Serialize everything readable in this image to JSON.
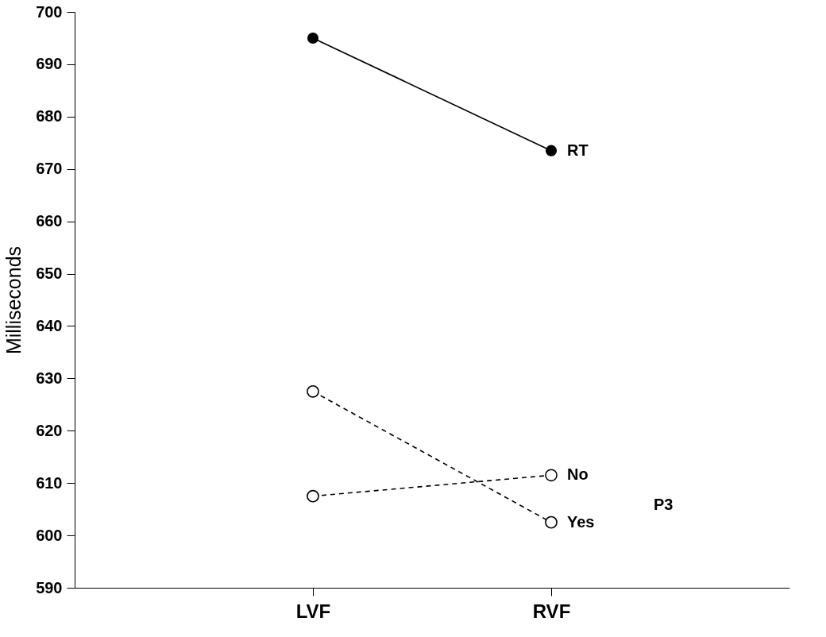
{
  "chart_data": {
    "type": "line",
    "ylabel": "Milliseconds",
    "categories": [
      "LVF",
      "RVF"
    ],
    "series": [
      {
        "name": "RT",
        "color": "#000000",
        "values": [
          695,
          673.5
        ],
        "line_style": "solid"
      },
      {
        "name": "No",
        "color": "#000000",
        "values": [
          607.5,
          611.5
        ],
        "line_style": "dashed"
      },
      {
        "name": "Yes",
        "color": "#000000",
        "values": [
          627.5,
          602.5
        ],
        "line_style": "dashed"
      }
    ],
    "ylim": [
      590,
      700
    ],
    "yticks": [
      590,
      600,
      610,
      620,
      630,
      640,
      650,
      660,
      670,
      680,
      690,
      700
    ],
    "marker": "circle",
    "annotations": [
      "P3"
    ]
  }
}
